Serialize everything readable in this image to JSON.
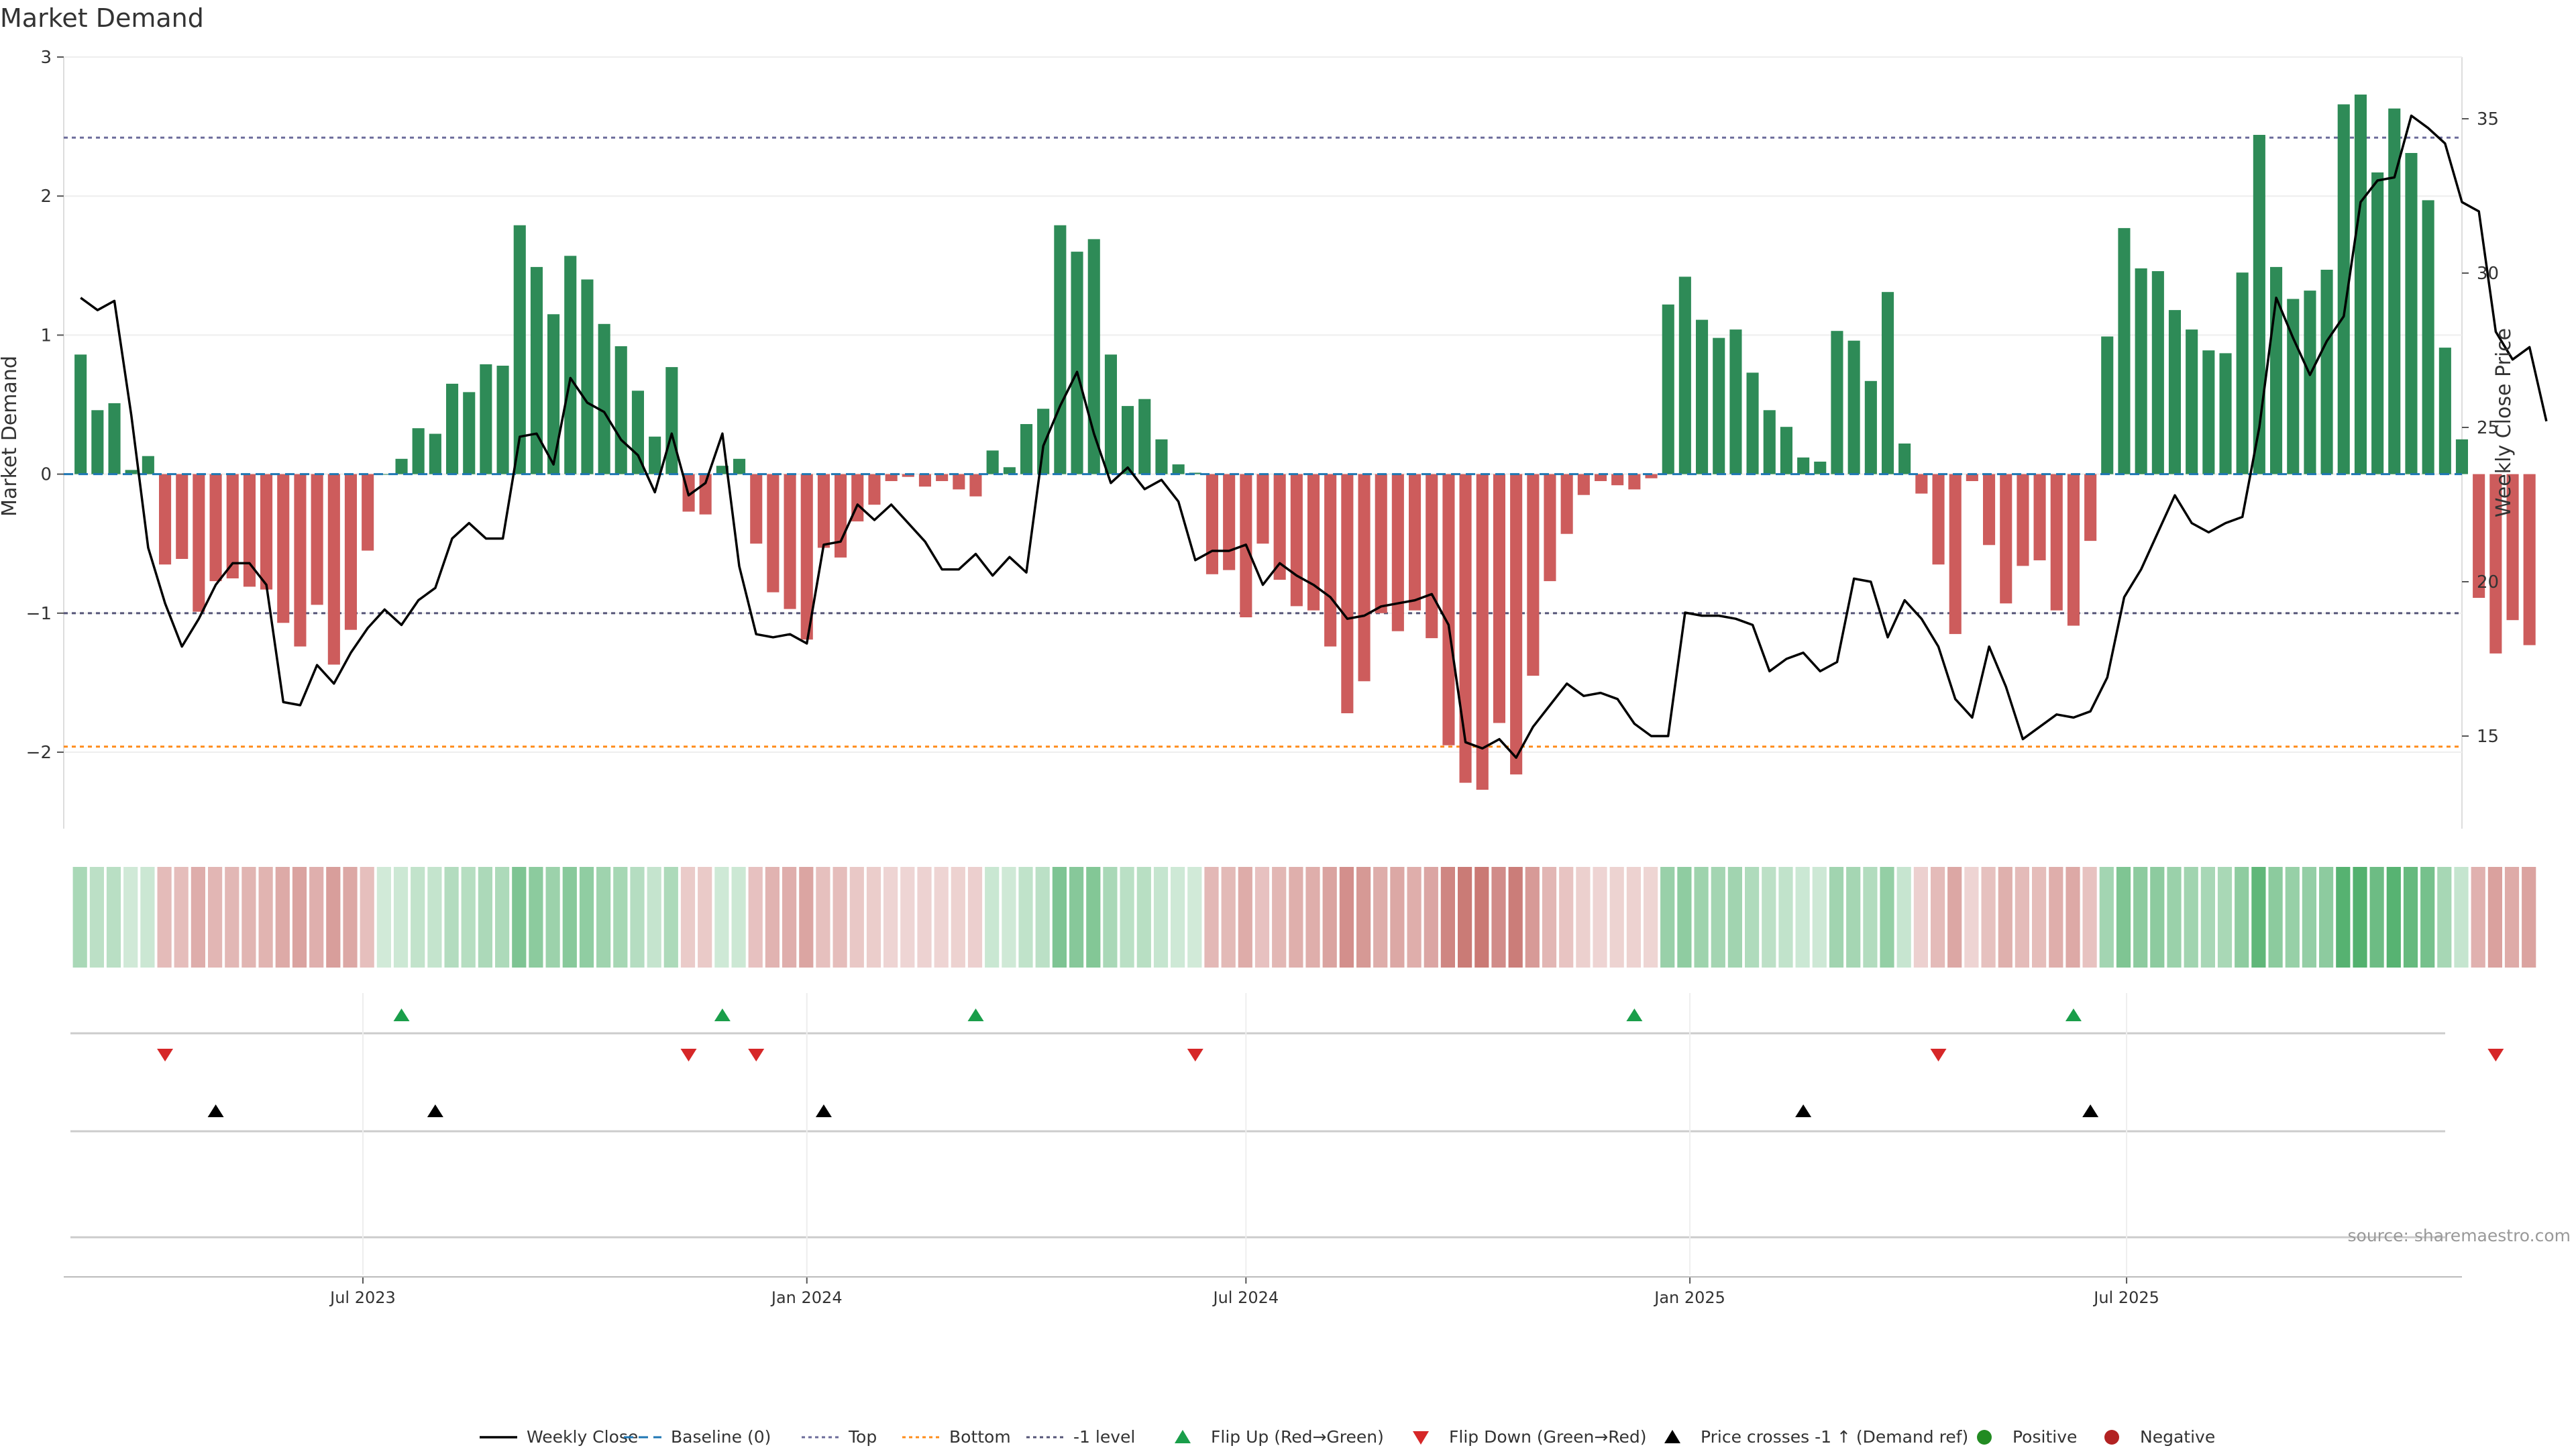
{
  "chart_data": {
    "type": "bar",
    "title": "Market Demand",
    "ylabel_left": "Market Demand",
    "ylabel_right": "Weekly Close Price",
    "ylim_left": [
      -2.55,
      3.0
    ],
    "ylim_right": [
      12.0,
      37.0
    ],
    "yticks_left": [
      3,
      2,
      1,
      0,
      -1,
      -2
    ],
    "yticks_left_labels": [
      "3",
      "2",
      "1",
      "0",
      "−1",
      "−2"
    ],
    "yticks_right": [
      35,
      30,
      25,
      20,
      15
    ],
    "yticks_right_labels": [
      "35",
      "30",
      "25",
      "20",
      "15"
    ],
    "x_domain": [
      "2023-02-27",
      "2025-11-17"
    ],
    "x_ticks": [
      {
        "label": "Jul 2023",
        "date": "2023-07-01"
      },
      {
        "label": "Jan 2024",
        "date": "2024-01-01"
      },
      {
        "label": "Jul 2024",
        "date": "2024-07-01"
      },
      {
        "label": "Jan 2025",
        "date": "2025-01-01"
      },
      {
        "label": "Jul 2025",
        "date": "2025-07-01"
      }
    ],
    "start_date": "2023-03-06",
    "week_step_days": 7,
    "levels": {
      "top": 2.42,
      "bottom": -1.96,
      "minus_one": -1.0,
      "baseline": 0
    },
    "demand": [
      0.86,
      0.46,
      0.51,
      0.03,
      0.13,
      -0.65,
      -0.61,
      -0.99,
      -0.77,
      -0.75,
      -0.81,
      -0.83,
      -1.07,
      -1.24,
      -0.94,
      -1.37,
      -1.12,
      -0.55,
      0,
      0.11,
      0.33,
      0.29,
      0.65,
      0.59,
      0.79,
      0.78,
      1.79,
      1.49,
      1.15,
      1.57,
      1.4,
      1.08,
      0.92,
      0.6,
      0.27,
      0.77,
      -0.27,
      -0.29,
      0.06,
      0.11,
      -0.5,
      -0.85,
      -0.97,
      -1.19,
      -0.53,
      -0.6,
      -0.34,
      -0.22,
      -0.05,
      -0.02,
      -0.09,
      -0.05,
      -0.11,
      -0.16,
      0.17,
      0.05,
      0.36,
      0.47,
      1.79,
      1.6,
      1.69,
      0.86,
      0.49,
      0.54,
      0.25,
      0.07,
      0.01,
      -0.72,
      -0.69,
      -1.03,
      -0.5,
      -0.76,
      -0.95,
      -0.98,
      -1.24,
      -1.72,
      -1.49,
      -1.0,
      -1.13,
      -0.98,
      -1.18,
      -1.95,
      -2.22,
      -2.27,
      -1.79,
      -2.16,
      -1.45,
      -0.77,
      -0.43,
      -0.15,
      -0.05,
      -0.08,
      -0.11,
      -0.03,
      1.22,
      1.42,
      1.11,
      0.98,
      1.04,
      0.73,
      0.46,
      0.34,
      0.12,
      0.09,
      1.03,
      0.96,
      0.67,
      1.31,
      0.22,
      -0.14,
      -0.65,
      -1.15,
      -0.05,
      -0.51,
      -0.93,
      -0.66,
      -0.62,
      -0.98,
      -1.09,
      -0.48,
      0.99,
      1.77,
      1.48,
      1.46,
      1.18,
      1.04,
      0.89,
      0.87,
      1.45,
      2.44,
      1.49,
      1.26,
      1.32,
      1.47,
      2.66,
      2.73,
      2.17,
      2.63,
      2.31,
      1.97,
      0.91,
      0.25,
      -0.89,
      -1.29,
      -1.05,
      -1.23
    ],
    "weekly_close": [
      29.2,
      28.8,
      29.1,
      25.4,
      21.1,
      19.3,
      17.9,
      18.8,
      19.9,
      20.6,
      20.6,
      19.9,
      16.1,
      16.0,
      17.3,
      16.7,
      17.7,
      18.5,
      19.1,
      18.6,
      19.4,
      19.8,
      21.4,
      21.9,
      21.4,
      21.4,
      24.7,
      24.8,
      23.8,
      26.6,
      25.8,
      25.5,
      24.6,
      24.1,
      22.9,
      24.8,
      22.8,
      23.2,
      24.8,
      20.5,
      18.3,
      18.2,
      18.3,
      18.0,
      21.2,
      21.3,
      22.5,
      22.0,
      22.5,
      21.9,
      21.3,
      20.4,
      20.4,
      20.9,
      20.2,
      20.8,
      20.3,
      24.4,
      25.7,
      26.8,
      24.8,
      23.2,
      23.7,
      23.0,
      23.3,
      22.6,
      20.7,
      21.0,
      21.0,
      21.2,
      19.9,
      20.6,
      20.2,
      19.9,
      19.5,
      18.8,
      18.9,
      19.2,
      19.3,
      19.4,
      19.6,
      18.6,
      14.8,
      14.6,
      14.9,
      14.3,
      15.3,
      16.0,
      16.7,
      16.3,
      16.4,
      16.2,
      15.4,
      15.0,
      15.0,
      19.0,
      18.9,
      18.9,
      18.8,
      18.6,
      17.1,
      17.5,
      17.7,
      17.1,
      17.4,
      20.1,
      20.0,
      18.2,
      19.4,
      18.8,
      17.9,
      16.2,
      15.6,
      17.9,
      16.6,
      14.9,
      15.3,
      15.7,
      15.6,
      15.8,
      16.9,
      19.5,
      20.4,
      21.6,
      22.8,
      21.9,
      21.6,
      21.9,
      22.1,
      25.0,
      29.2,
      27.9,
      26.7,
      27.8,
      28.6,
      32.3,
      33.0,
      33.1,
      35.1,
      34.7,
      34.2,
      32.3,
      32.0,
      28.1,
      27.2,
      27.6,
      25.2
    ],
    "flip_up_indices": [
      19,
      38,
      53,
      92,
      118
    ],
    "flip_down_indices": [
      5,
      36,
      40,
      66,
      110,
      143
    ],
    "price_cross_indices": [
      8,
      21,
      44,
      102,
      119
    ],
    "intensity_strip": "color-coded weekly demand intensity (green = positive, red = negative)",
    "legend": [
      {
        "label": "Weekly Close",
        "kind": "line"
      },
      {
        "label": "Baseline (0)",
        "kind": "dash"
      },
      {
        "label": "Top",
        "kind": "dot-purple"
      },
      {
        "label": "Bottom",
        "kind": "dot-orange"
      },
      {
        "label": "-1 level",
        "kind": "dot-gray"
      },
      {
        "label": "Flip Up (Red→Green)",
        "kind": "tri-up-green"
      },
      {
        "label": "Flip Down (Green→Red)",
        "kind": "tri-down-red"
      },
      {
        "label": "Price crosses -1 ↑ (Demand ref)",
        "kind": "tri-up-black"
      },
      {
        "label": "Positive",
        "kind": "dot-green"
      },
      {
        "label": "Negative",
        "kind": "dot-red"
      }
    ],
    "source_note": "source: sharemaestro.com"
  },
  "colors": {
    "positive": "#2e8b57",
    "negative": "#cd5c5c",
    "flip_up": "#1a9e4a",
    "flip_down": "#d62728",
    "top_line": "#6b6b9a",
    "bottom_line": "#ff8c1a",
    "minus_one_line": "#555577",
    "baseline": "#1f77b4",
    "price_line": "#000000",
    "legend_positive": "#228b22",
    "legend_negative": "#b22222"
  }
}
